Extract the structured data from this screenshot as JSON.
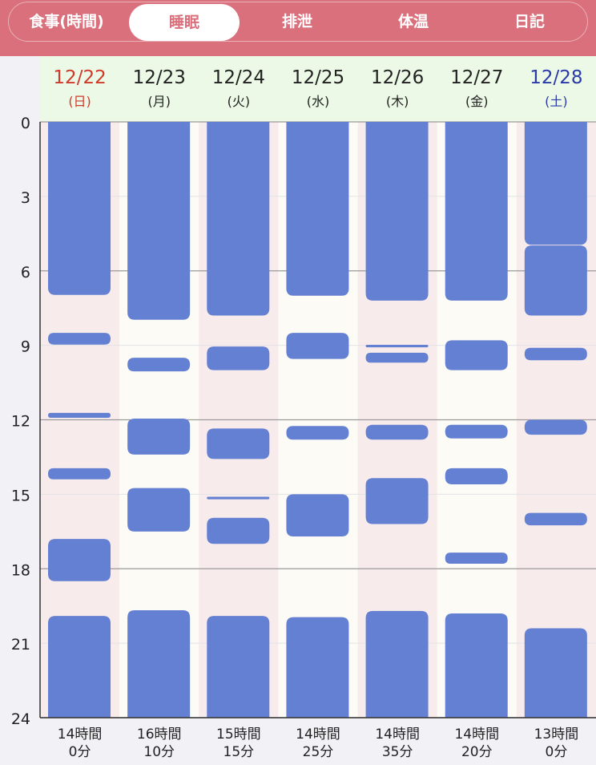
{
  "tabs": [
    {
      "label": "食事(時間)",
      "active": false
    },
    {
      "label": "睡眠",
      "active": true
    },
    {
      "label": "排泄",
      "active": false
    },
    {
      "label": "体温",
      "active": false
    },
    {
      "label": "日記",
      "active": false
    }
  ],
  "colors": {
    "header": "#d9707c",
    "bar": "#6480d2",
    "date_header_bg": "#ecf9e6",
    "sunday": "#d03a2a",
    "saturday": "#2a3aa8",
    "weekday": "#222222",
    "col_pink": "#f8ebec",
    "col_cream": "#fdfbf6"
  },
  "chart_data": {
    "type": "bar",
    "y_axis": {
      "min": 0,
      "max": 24,
      "ticks": [
        "0",
        "3",
        "6",
        "9",
        "12",
        "15",
        "18",
        "21",
        "24"
      ]
    },
    "days": [
      {
        "date": "12/22",
        "weekday": "(日)",
        "kind": "sunday",
        "total_hours": "14時間",
        "total_minutes": "0分",
        "segments": [
          [
            0,
            6.97
          ],
          [
            8.5,
            8.97
          ],
          [
            11.72,
            11.92
          ],
          [
            13.95,
            14.4
          ],
          [
            16.8,
            18.5
          ],
          [
            19.9,
            24
          ]
        ]
      },
      {
        "date": "12/23",
        "weekday": "(月)",
        "kind": "weekday",
        "total_hours": "16時間",
        "total_minutes": "10分",
        "segments": [
          [
            0,
            7.97
          ],
          [
            9.5,
            10.05
          ],
          [
            11.95,
            13.4
          ],
          [
            14.75,
            16.5
          ],
          [
            19.67,
            24
          ]
        ]
      },
      {
        "date": "12/24",
        "weekday": "(火)",
        "kind": "weekday",
        "total_hours": "15時間",
        "total_minutes": "15分",
        "segments": [
          [
            0,
            7.8
          ],
          [
            9.05,
            10.0
          ],
          [
            12.35,
            13.58
          ],
          [
            15.1,
            15.2
          ],
          [
            15.95,
            17.0
          ],
          [
            19.9,
            24
          ]
        ]
      },
      {
        "date": "12/25",
        "weekday": "(水)",
        "kind": "weekday",
        "total_hours": "14時間",
        "total_minutes": "25分",
        "segments": [
          [
            0,
            7.0
          ],
          [
            8.5,
            9.55
          ],
          [
            12.25,
            12.8
          ],
          [
            15.0,
            16.7
          ],
          [
            19.95,
            24
          ]
        ]
      },
      {
        "date": "12/26",
        "weekday": "(木)",
        "kind": "weekday",
        "total_hours": "14時間",
        "total_minutes": "35分",
        "segments": [
          [
            0,
            7.2
          ],
          [
            8.98,
            9.08
          ],
          [
            9.3,
            9.7
          ],
          [
            12.2,
            12.8
          ],
          [
            14.35,
            16.2
          ],
          [
            19.7,
            24
          ]
        ]
      },
      {
        "date": "12/27",
        "weekday": "(金)",
        "kind": "weekday",
        "total_hours": "14時間",
        "total_minutes": "20分",
        "segments": [
          [
            0,
            7.2
          ],
          [
            8.8,
            10.0
          ],
          [
            12.2,
            12.75
          ],
          [
            13.95,
            14.6
          ],
          [
            17.35,
            17.8
          ],
          [
            19.8,
            24
          ]
        ]
      },
      {
        "date": "12/28",
        "weekday": "(土)",
        "kind": "saturday",
        "total_hours": "13時間",
        "total_minutes": "0分",
        "segments": [
          [
            0,
            4.95
          ],
          [
            4.98,
            7.8
          ],
          [
            9.1,
            9.6
          ],
          [
            12.0,
            12.6
          ],
          [
            15.75,
            16.25
          ],
          [
            20.4,
            24
          ]
        ]
      }
    ]
  }
}
